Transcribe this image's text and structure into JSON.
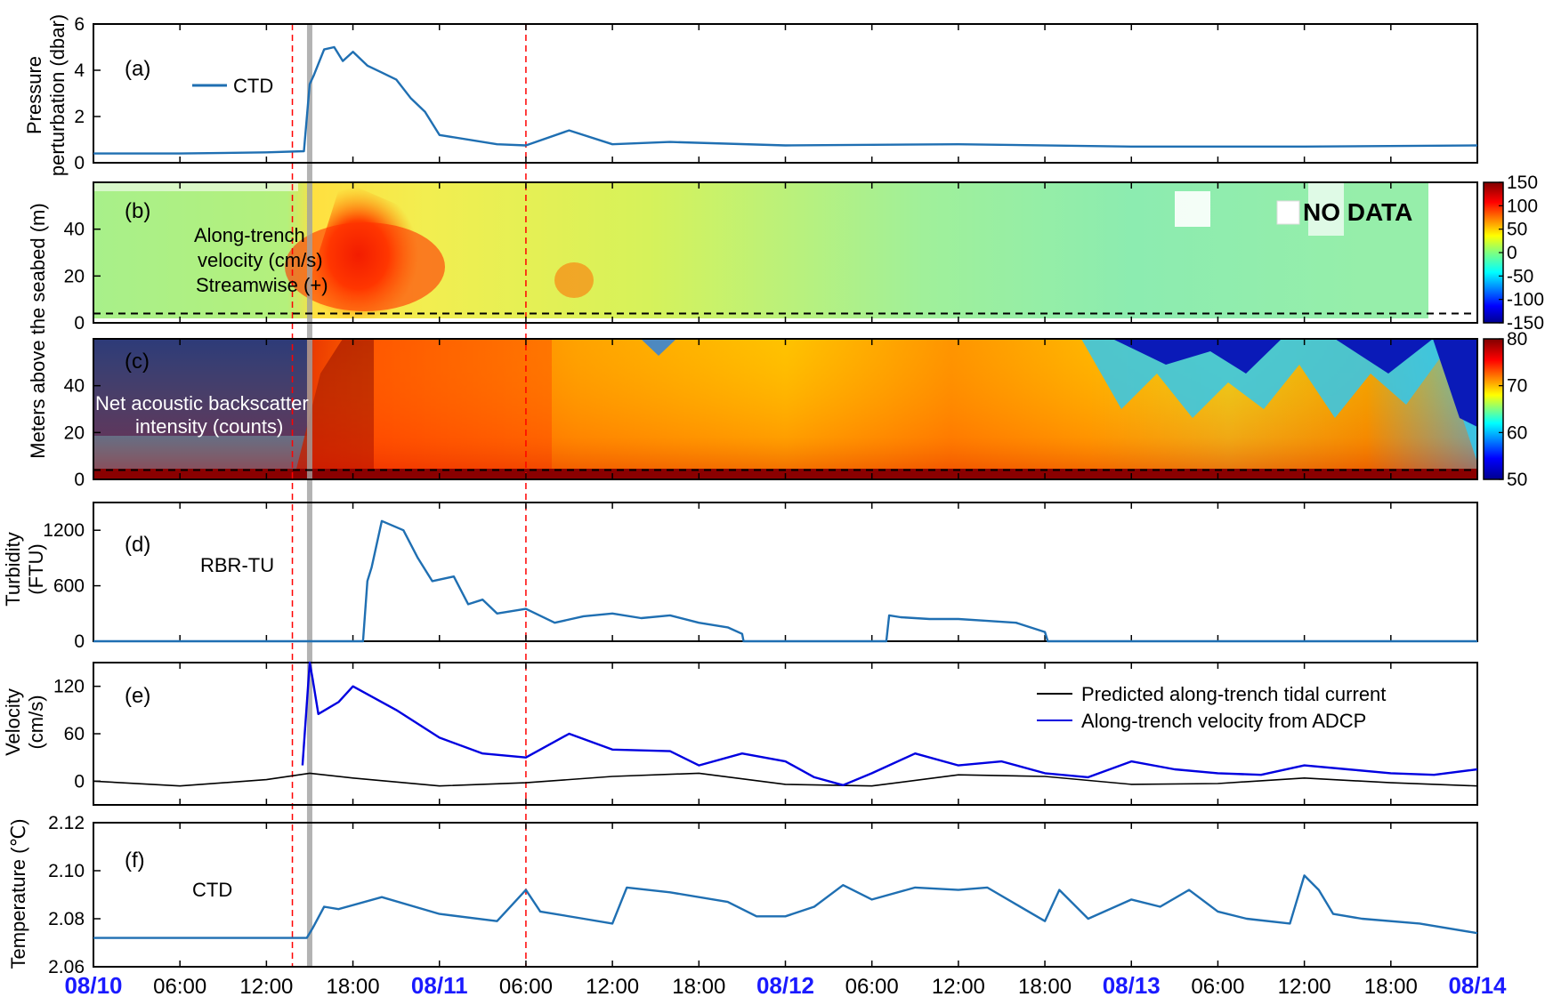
{
  "chart_data": [
    {
      "panel": "(a)",
      "type": "line",
      "ylabel_lines": [
        "Pressure",
        "perturbation (dbar)"
      ],
      "ylim": [
        0,
        6
      ],
      "yticks": [
        "0",
        "2",
        "4",
        "6"
      ],
      "series": [
        {
          "name": "CTD",
          "color": "#1f6fb2",
          "x": [
            0,
            6,
            12,
            14.6,
            15.0,
            15.3,
            16,
            16.7,
            17.3,
            18,
            19,
            20,
            21,
            22,
            23,
            24,
            28,
            30,
            33,
            36,
            40,
            48,
            60,
            72,
            84,
            96
          ],
          "values": [
            0.4,
            0.4,
            0.45,
            0.5,
            3.4,
            3.8,
            4.9,
            5.0,
            4.4,
            4.8,
            4.2,
            3.9,
            3.6,
            2.8,
            2.2,
            1.2,
            0.8,
            0.75,
            1.4,
            0.8,
            0.9,
            0.75,
            0.8,
            0.7,
            0.7,
            0.75
          ]
        }
      ],
      "annotation": "(a)",
      "legend": "CTD"
    },
    {
      "panel": "(b)",
      "type": "heatmap",
      "annotation_lines": [
        "Along-trench",
        "velocity (cm/s)",
        "Streamwise (+)"
      ],
      "ylim": [
        0,
        60
      ],
      "yticks": [
        "0",
        "20",
        "40"
      ],
      "colorbar": {
        "min": -150,
        "max": 150,
        "ticks": [
          "150",
          "100",
          "50",
          "0",
          "-50",
          "-100",
          "-150"
        ]
      },
      "nodata_label": "NO DATA"
    },
    {
      "panel": "(c)",
      "type": "heatmap",
      "annotation_lines": [
        "Net acoustic backscatter",
        "intensity (counts)"
      ],
      "ylim": [
        0,
        60
      ],
      "yticks": [
        "0",
        "20",
        "40"
      ],
      "colorbar": {
        "min": 50,
        "max": 80,
        "ticks": [
          "80",
          "70",
          "60",
          "50"
        ]
      }
    },
    {
      "panel": "(d)",
      "type": "line",
      "ylabel_lines": [
        "Turbidity",
        "(FTU)"
      ],
      "ylim": [
        0,
        1500
      ],
      "yticks": [
        "0",
        "600",
        "1200"
      ],
      "series": [
        {
          "name": "RBR-TU",
          "color": "#1f6fb2",
          "x": [
            0,
            18.7,
            19.0,
            19.3,
            20,
            21.5,
            22.5,
            23.5,
            25,
            26,
            27,
            28,
            30,
            32,
            34,
            36,
            38,
            40,
            42,
            44,
            45,
            45.1,
            55,
            55.2,
            56,
            58,
            60,
            62,
            64,
            66,
            66.2,
            96
          ],
          "values": [
            0,
            0,
            650,
            800,
            1300,
            1200,
            900,
            650,
            700,
            400,
            450,
            300,
            350,
            200,
            270,
            300,
            250,
            280,
            200,
            150,
            80,
            0,
            0,
            280,
            260,
            240,
            240,
            220,
            200,
            100,
            0,
            0
          ]
        }
      ],
      "legend": "RBR-TU"
    },
    {
      "panel": "(e)",
      "type": "line",
      "ylabel_lines": [
        "Velocity",
        "(cm/s)"
      ],
      "ylim": [
        -30,
        150
      ],
      "yticks": [
        "0",
        "60",
        "120"
      ],
      "series": [
        {
          "name": "Predicted along-trench tidal current",
          "color": "#000000",
          "x": [
            0,
            6,
            12,
            15,
            18,
            24,
            30,
            36,
            42,
            48,
            54,
            60,
            66,
            72,
            78,
            84,
            90,
            96
          ],
          "values": [
            0,
            -6,
            2,
            10,
            4,
            -6,
            -2,
            6,
            10,
            -4,
            -6,
            8,
            6,
            -4,
            -3,
            4,
            -2,
            -6
          ]
        },
        {
          "name": "Along-trench velocity from ADCP",
          "color": "#0000e0",
          "x": [
            14.5,
            15.0,
            15.2,
            15.6,
            17,
            18,
            19,
            21,
            24,
            27,
            30,
            33,
            36,
            40,
            42,
            45,
            48,
            50,
            52,
            54,
            57,
            60,
            63,
            66,
            69,
            72,
            75,
            78,
            81,
            84,
            87,
            90,
            93,
            96
          ],
          "values": [
            20,
            150,
            130,
            85,
            100,
            120,
            110,
            90,
            55,
            35,
            30,
            60,
            40,
            38,
            20,
            35,
            25,
            5,
            -5,
            10,
            35,
            20,
            25,
            10,
            5,
            25,
            15,
            10,
            8,
            20,
            15,
            10,
            8,
            15
          ]
        }
      ],
      "legend_entries": [
        "Predicted along-trench tidal current",
        "Along-trench velocity from ADCP"
      ]
    },
    {
      "panel": "(f)",
      "type": "line",
      "ylabel": "Temperature (℃)",
      "ylim": [
        2.06,
        2.12
      ],
      "yticks": [
        "2.06",
        "2.08",
        "2.10",
        "2.12"
      ],
      "series": [
        {
          "name": "CTD",
          "color": "#1f6fb2",
          "x": [
            0,
            6,
            12,
            14.8,
            15.2,
            16,
            17,
            20,
            24,
            28,
            30,
            31,
            34,
            36,
            37,
            40,
            44,
            46,
            48,
            50,
            52,
            54,
            57,
            60,
            62,
            64,
            66,
            67,
            69,
            72,
            74,
            76,
            78,
            80,
            83,
            84,
            85,
            86,
            88,
            92,
            96
          ],
          "values": [
            2.072,
            2.072,
            2.072,
            2.072,
            2.076,
            2.085,
            2.084,
            2.089,
            2.082,
            2.079,
            2.092,
            2.083,
            2.08,
            2.078,
            2.093,
            2.091,
            2.087,
            2.081,
            2.081,
            2.085,
            2.094,
            2.088,
            2.093,
            2.092,
            2.093,
            2.086,
            2.079,
            2.092,
            2.08,
            2.088,
            2.085,
            2.092,
            2.083,
            2.08,
            2.078,
            2.098,
            2.092,
            2.082,
            2.08,
            2.078,
            2.074
          ]
        }
      ],
      "legend": "CTD"
    }
  ],
  "shared": {
    "ylabel_bc": "Meters above the seabed (m)",
    "xlim": [
      0,
      96
    ],
    "xticks": [
      {
        "label": "08/10",
        "bold": true
      },
      {
        "label": "06:00",
        "bold": false
      },
      {
        "label": "12:00",
        "bold": false
      },
      {
        "label": "18:00",
        "bold": false
      },
      {
        "label": "08/11",
        "bold": true
      },
      {
        "label": "06:00",
        "bold": false
      },
      {
        "label": "12:00",
        "bold": false
      },
      {
        "label": "18:00",
        "bold": false
      },
      {
        "label": "08/12",
        "bold": true
      },
      {
        "label": "06:00",
        "bold": false
      },
      {
        "label": "12:00",
        "bold": false
      },
      {
        "label": "18:00",
        "bold": false
      },
      {
        "label": "08/13",
        "bold": true
      },
      {
        "label": "06:00",
        "bold": false
      },
      {
        "label": "12:00",
        "bold": false
      },
      {
        "label": "18:00",
        "bold": false
      },
      {
        "label": "08/14",
        "bold": true
      }
    ],
    "event_lines_hours": [
      13.8,
      30.0
    ],
    "gray_band_hours": 15.0,
    "dashed_floor_m": 4,
    "colors": {
      "event_line": "#ff0000",
      "gray_band": "#a0a0a0",
      "date_label": "#1a1aff"
    }
  }
}
